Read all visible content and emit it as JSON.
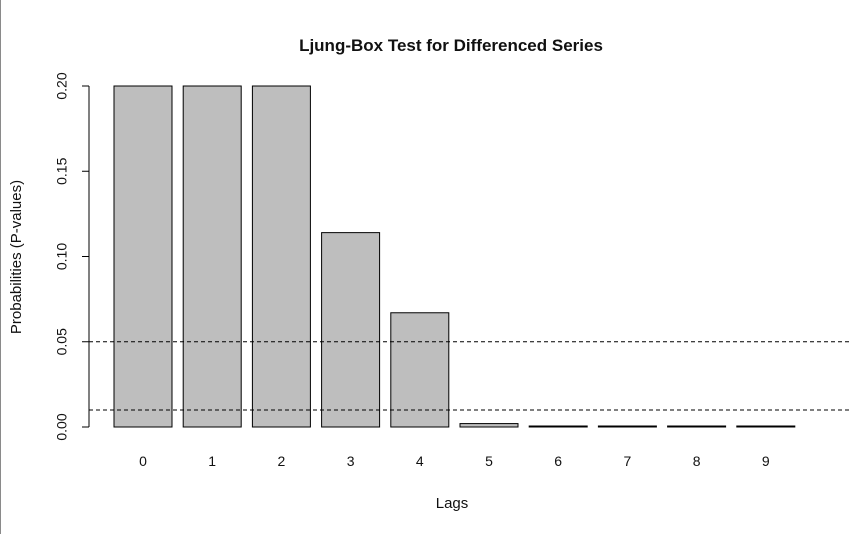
{
  "chart_data": {
    "type": "bar",
    "title": "Ljung-Box Test for Differenced Series",
    "xlabel": "Lags",
    "ylabel": "Probabilities (P-values)",
    "categories": [
      "0",
      "1",
      "2",
      "3",
      "4",
      "5",
      "6",
      "7",
      "8",
      "9"
    ],
    "values": [
      0.2,
      0.2,
      0.2,
      0.114,
      0.067,
      0.002,
      0.0004,
      0.0003,
      0.0002,
      0.0002
    ],
    "ylim": [
      0,
      0.2
    ],
    "yticks": [
      "0.00",
      "0.05",
      "0.10",
      "0.15",
      "0.20"
    ],
    "reference_lines": [
      0.05,
      0.01
    ],
    "grid": false,
    "bar_color": "#bebebe",
    "bar_border_color": "#000000",
    "reference_line_style": "dashed"
  }
}
